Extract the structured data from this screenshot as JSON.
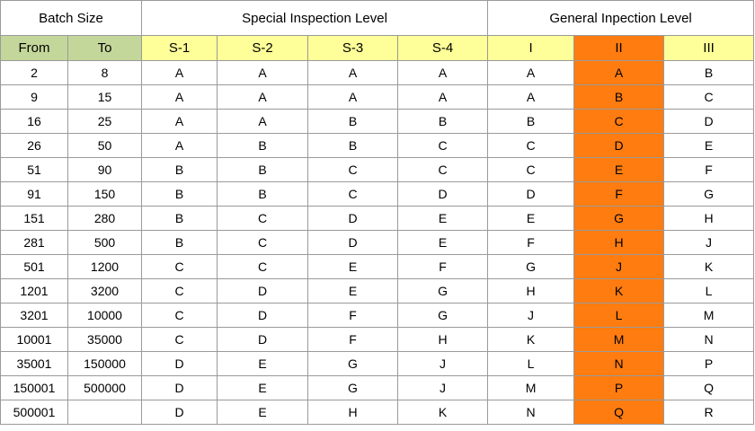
{
  "header": {
    "batch_size": "Batch Size",
    "special": "Special Inspection Level",
    "general": "General Inpection Level"
  },
  "subheader": {
    "from": "From",
    "to": "To",
    "levels": [
      "S-1",
      "S-2",
      "S-3",
      "S-4",
      "I",
      "II",
      "III"
    ]
  },
  "highlight_level": "II",
  "colors": {
    "batch_header_fill": "#c4d79b",
    "level_header_fill": "#ffff99",
    "highlight_fill": "#ff7c10",
    "border": "#9a9a9a"
  },
  "rows": [
    {
      "from": "2",
      "to": "8",
      "codes": [
        "A",
        "A",
        "A",
        "A",
        "A",
        "A",
        "B"
      ]
    },
    {
      "from": "9",
      "to": "15",
      "codes": [
        "A",
        "A",
        "A",
        "A",
        "A",
        "B",
        "C"
      ]
    },
    {
      "from": "16",
      "to": "25",
      "codes": [
        "A",
        "A",
        "B",
        "B",
        "B",
        "C",
        "D"
      ]
    },
    {
      "from": "26",
      "to": "50",
      "codes": [
        "A",
        "B",
        "B",
        "C",
        "C",
        "D",
        "E"
      ]
    },
    {
      "from": "51",
      "to": "90",
      "codes": [
        "B",
        "B",
        "C",
        "C",
        "C",
        "E",
        "F"
      ]
    },
    {
      "from": "91",
      "to": "150",
      "codes": [
        "B",
        "B",
        "C",
        "D",
        "D",
        "F",
        "G"
      ]
    },
    {
      "from": "151",
      "to": "280",
      "codes": [
        "B",
        "C",
        "D",
        "E",
        "E",
        "G",
        "H"
      ]
    },
    {
      "from": "281",
      "to": "500",
      "codes": [
        "B",
        "C",
        "D",
        "E",
        "F",
        "H",
        "J"
      ]
    },
    {
      "from": "501",
      "to": "1200",
      "codes": [
        "C",
        "C",
        "E",
        "F",
        "G",
        "J",
        "K"
      ]
    },
    {
      "from": "1201",
      "to": "3200",
      "codes": [
        "C",
        "D",
        "E",
        "G",
        "H",
        "K",
        "L"
      ]
    },
    {
      "from": "3201",
      "to": "10000",
      "codes": [
        "C",
        "D",
        "F",
        "G",
        "J",
        "L",
        "M"
      ]
    },
    {
      "from": "10001",
      "to": "35000",
      "codes": [
        "C",
        "D",
        "F",
        "H",
        "K",
        "M",
        "N"
      ]
    },
    {
      "from": "35001",
      "to": "150000",
      "codes": [
        "D",
        "E",
        "G",
        "J",
        "L",
        "N",
        "P"
      ]
    },
    {
      "from": "150001",
      "to": "500000",
      "codes": [
        "D",
        "E",
        "G",
        "J",
        "M",
        "P",
        "Q"
      ]
    },
    {
      "from": "500001",
      "to": "",
      "codes": [
        "D",
        "E",
        "H",
        "K",
        "N",
        "Q",
        "R"
      ]
    }
  ]
}
